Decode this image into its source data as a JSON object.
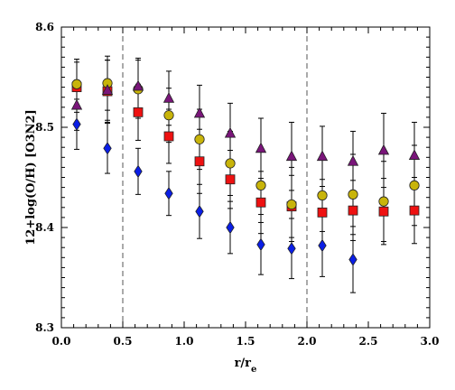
{
  "chart_data": {
    "type": "scatter",
    "title": "",
    "xlabel": "r/r",
    "xlabel_sub": "e",
    "ylabel": "12+log(O/H) [O3N2]",
    "xlim": [
      0.0,
      3.0
    ],
    "ylim": [
      8.3,
      8.6
    ],
    "xticks": [
      "0.0",
      "0.5",
      "1.0",
      "1.5",
      "2.0",
      "2.5",
      "3.0"
    ],
    "yticks": [
      "8.3",
      "8.4",
      "8.5",
      "8.6"
    ],
    "vlines": [
      0.5,
      2.0
    ],
    "grid": false,
    "series": [
      {
        "marker": "diamond",
        "color": "#0a1ee6",
        "x": [
          0.125,
          0.375,
          0.625,
          0.875,
          1.125,
          1.375,
          1.625,
          1.875,
          2.125,
          2.375
        ],
        "y": [
          8.503,
          8.479,
          8.456,
          8.434,
          8.416,
          8.4,
          8.383,
          8.379,
          8.382,
          8.368
        ],
        "err": [
          0.025,
          0.025,
          0.023,
          0.022,
          0.027,
          0.026,
          0.03,
          0.03,
          0.031,
          0.033
        ]
      },
      {
        "marker": "square",
        "color": "#ee1111",
        "x": [
          0.125,
          0.375,
          0.625,
          0.875,
          1.125,
          1.375,
          1.625,
          1.875,
          2.125,
          2.375,
          2.625,
          2.875
        ],
        "y": [
          8.54,
          8.536,
          8.515,
          8.491,
          8.466,
          8.448,
          8.425,
          8.421,
          8.415,
          8.417,
          8.416,
          8.417
        ],
        "err": [
          0.025,
          0.031,
          0.028,
          0.027,
          0.032,
          0.029,
          0.031,
          0.031,
          0.033,
          0.03,
          0.033,
          0.033
        ]
      },
      {
        "marker": "circle",
        "color": "#c8b40a",
        "x": [
          0.125,
          0.375,
          0.625,
          0.875,
          1.125,
          1.375,
          1.625,
          1.875,
          2.125,
          2.375,
          2.625,
          2.875
        ],
        "y": [
          8.543,
          8.544,
          8.538,
          8.512,
          8.488,
          8.464,
          8.442,
          8.423,
          8.432,
          8.433,
          8.426,
          8.442
        ],
        "err": [
          0.025,
          0.027,
          0.029,
          0.027,
          0.03,
          0.032,
          0.037,
          0.037,
          0.036,
          0.04,
          0.04,
          0.04
        ]
      },
      {
        "marker": "triangle",
        "color": "#7a157a",
        "x": [
          0.125,
          0.375,
          0.625,
          0.875,
          1.125,
          1.375,
          1.625,
          1.875,
          2.125,
          2.375,
          2.625,
          2.875
        ],
        "y": [
          8.522,
          8.537,
          8.541,
          8.529,
          8.514,
          8.494,
          8.479,
          8.471,
          8.471,
          8.466,
          8.477,
          8.472
        ],
        "err": [
          0.025,
          0.03,
          0.028,
          0.027,
          0.028,
          0.03,
          0.03,
          0.034,
          0.03,
          0.03,
          0.037,
          0.033
        ]
      }
    ]
  }
}
